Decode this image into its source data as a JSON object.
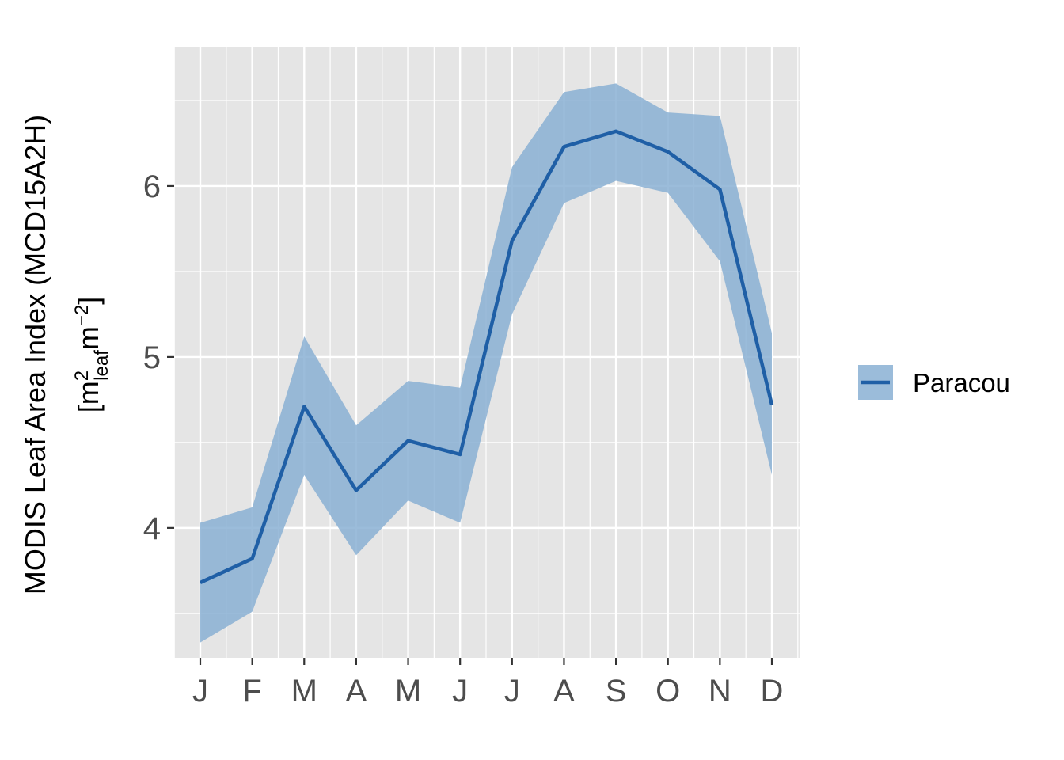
{
  "chart_data": {
    "type": "line",
    "categories": [
      "J",
      "F",
      "M",
      "A",
      "M",
      "J",
      "J",
      "A",
      "S",
      "O",
      "N",
      "D"
    ],
    "series": [
      {
        "name": "Paracou",
        "values": [
          3.68,
          3.82,
          4.71,
          4.22,
          4.51,
          4.43,
          5.68,
          6.23,
          6.32,
          6.2,
          5.98,
          4.72
        ],
        "lower": [
          3.33,
          3.51,
          4.31,
          3.84,
          4.16,
          4.03,
          5.25,
          5.9,
          6.03,
          5.96,
          5.56,
          4.31
        ],
        "upper": [
          4.03,
          4.12,
          5.12,
          4.6,
          4.86,
          4.82,
          6.11,
          6.55,
          6.6,
          6.43,
          6.41,
          5.14
        ]
      }
    ],
    "ylabel_line1": "MODIS Leaf Area Index (MCD15A2H)",
    "ylabel_line2": {
      "open": "[m",
      "sup1": "2",
      "sub": "leaf",
      "m": "m",
      "sup2": "−2",
      "close": "]"
    },
    "yticks": [
      "4",
      "5",
      "6"
    ],
    "ylim": [
      3.24,
      6.81
    ],
    "legend_position": "right",
    "grid": true,
    "colors": {
      "line": "#1f5fa6",
      "ribbon": "#8ab0d3",
      "panel": "#e5e5e5",
      "grid": "#ffffff"
    }
  }
}
